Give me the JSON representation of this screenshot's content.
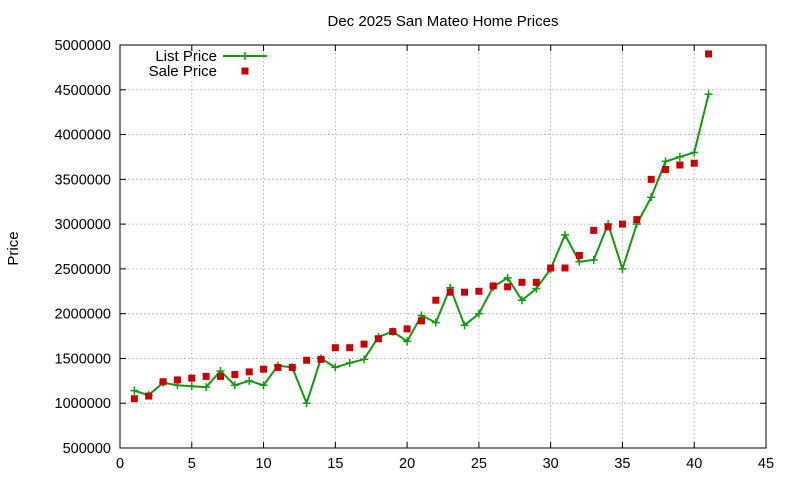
{
  "chart_data": {
    "type": "line",
    "title": "Dec 2025 San Mateo Home Prices",
    "xlabel": "",
    "ylabel": "Price",
    "xlim": [
      0,
      45
    ],
    "ylim": [
      500000,
      5000000
    ],
    "x_ticks": [
      "0",
      "5",
      "10",
      "15",
      "20",
      "25",
      "30",
      "35",
      "40",
      "45"
    ],
    "y_ticks": [
      "500000",
      "1000000",
      "1500000",
      "2000000",
      "2500000",
      "3000000",
      "3500000",
      "4000000",
      "4500000",
      "5000000"
    ],
    "grid": true,
    "legend_position": "top-left",
    "series": [
      {
        "name": "List Price",
        "style": "linespoints",
        "color": "#109a10",
        "marker": "plus",
        "x": [
          1,
          2,
          3,
          4,
          5,
          6,
          7,
          8,
          9,
          10,
          11,
          12,
          13,
          14,
          15,
          16,
          17,
          18,
          19,
          20,
          21,
          22,
          23,
          24,
          25,
          26,
          27,
          28,
          29,
          30,
          31,
          32,
          33,
          34,
          35,
          36,
          37,
          38,
          39,
          40,
          41
        ],
        "values": [
          1140000,
          1090000,
          1230000,
          1200000,
          1190000,
          1180000,
          1360000,
          1200000,
          1250000,
          1200000,
          1420000,
          1400000,
          1000000,
          1500000,
          1400000,
          1450000,
          1490000,
          1740000,
          1800000,
          1690000,
          1980000,
          1900000,
          2290000,
          1870000,
          2000000,
          2300000,
          2400000,
          2150000,
          2280000,
          2500000,
          2880000,
          2580000,
          2600000,
          3000000,
          2500000,
          3000000,
          3300000,
          3700000,
          3750000,
          3800000,
          4450000
        ]
      },
      {
        "name": "Sale Price",
        "style": "points",
        "color": "#c80000",
        "marker": "square",
        "x": [
          1,
          2,
          3,
          4,
          5,
          6,
          7,
          8,
          9,
          10,
          11,
          12,
          13,
          14,
          15,
          16,
          17,
          18,
          19,
          20,
          21,
          22,
          23,
          24,
          25,
          26,
          27,
          28,
          29,
          30,
          31,
          32,
          33,
          34,
          35,
          36,
          37,
          38,
          39,
          40,
          41
        ],
        "values": [
          1050000,
          1080000,
          1240000,
          1260000,
          1280000,
          1300000,
          1300000,
          1320000,
          1350000,
          1380000,
          1400000,
          1400000,
          1480000,
          1490000,
          1620000,
          1620000,
          1660000,
          1720000,
          1800000,
          1830000,
          1920000,
          2150000,
          2240000,
          2240000,
          2250000,
          2310000,
          2300000,
          2350000,
          2350000,
          2510000,
          2510000,
          2650000,
          2930000,
          2970000,
          3000000,
          3050000,
          3500000,
          3610000,
          3660000,
          3680000,
          4900000
        ]
      }
    ]
  }
}
